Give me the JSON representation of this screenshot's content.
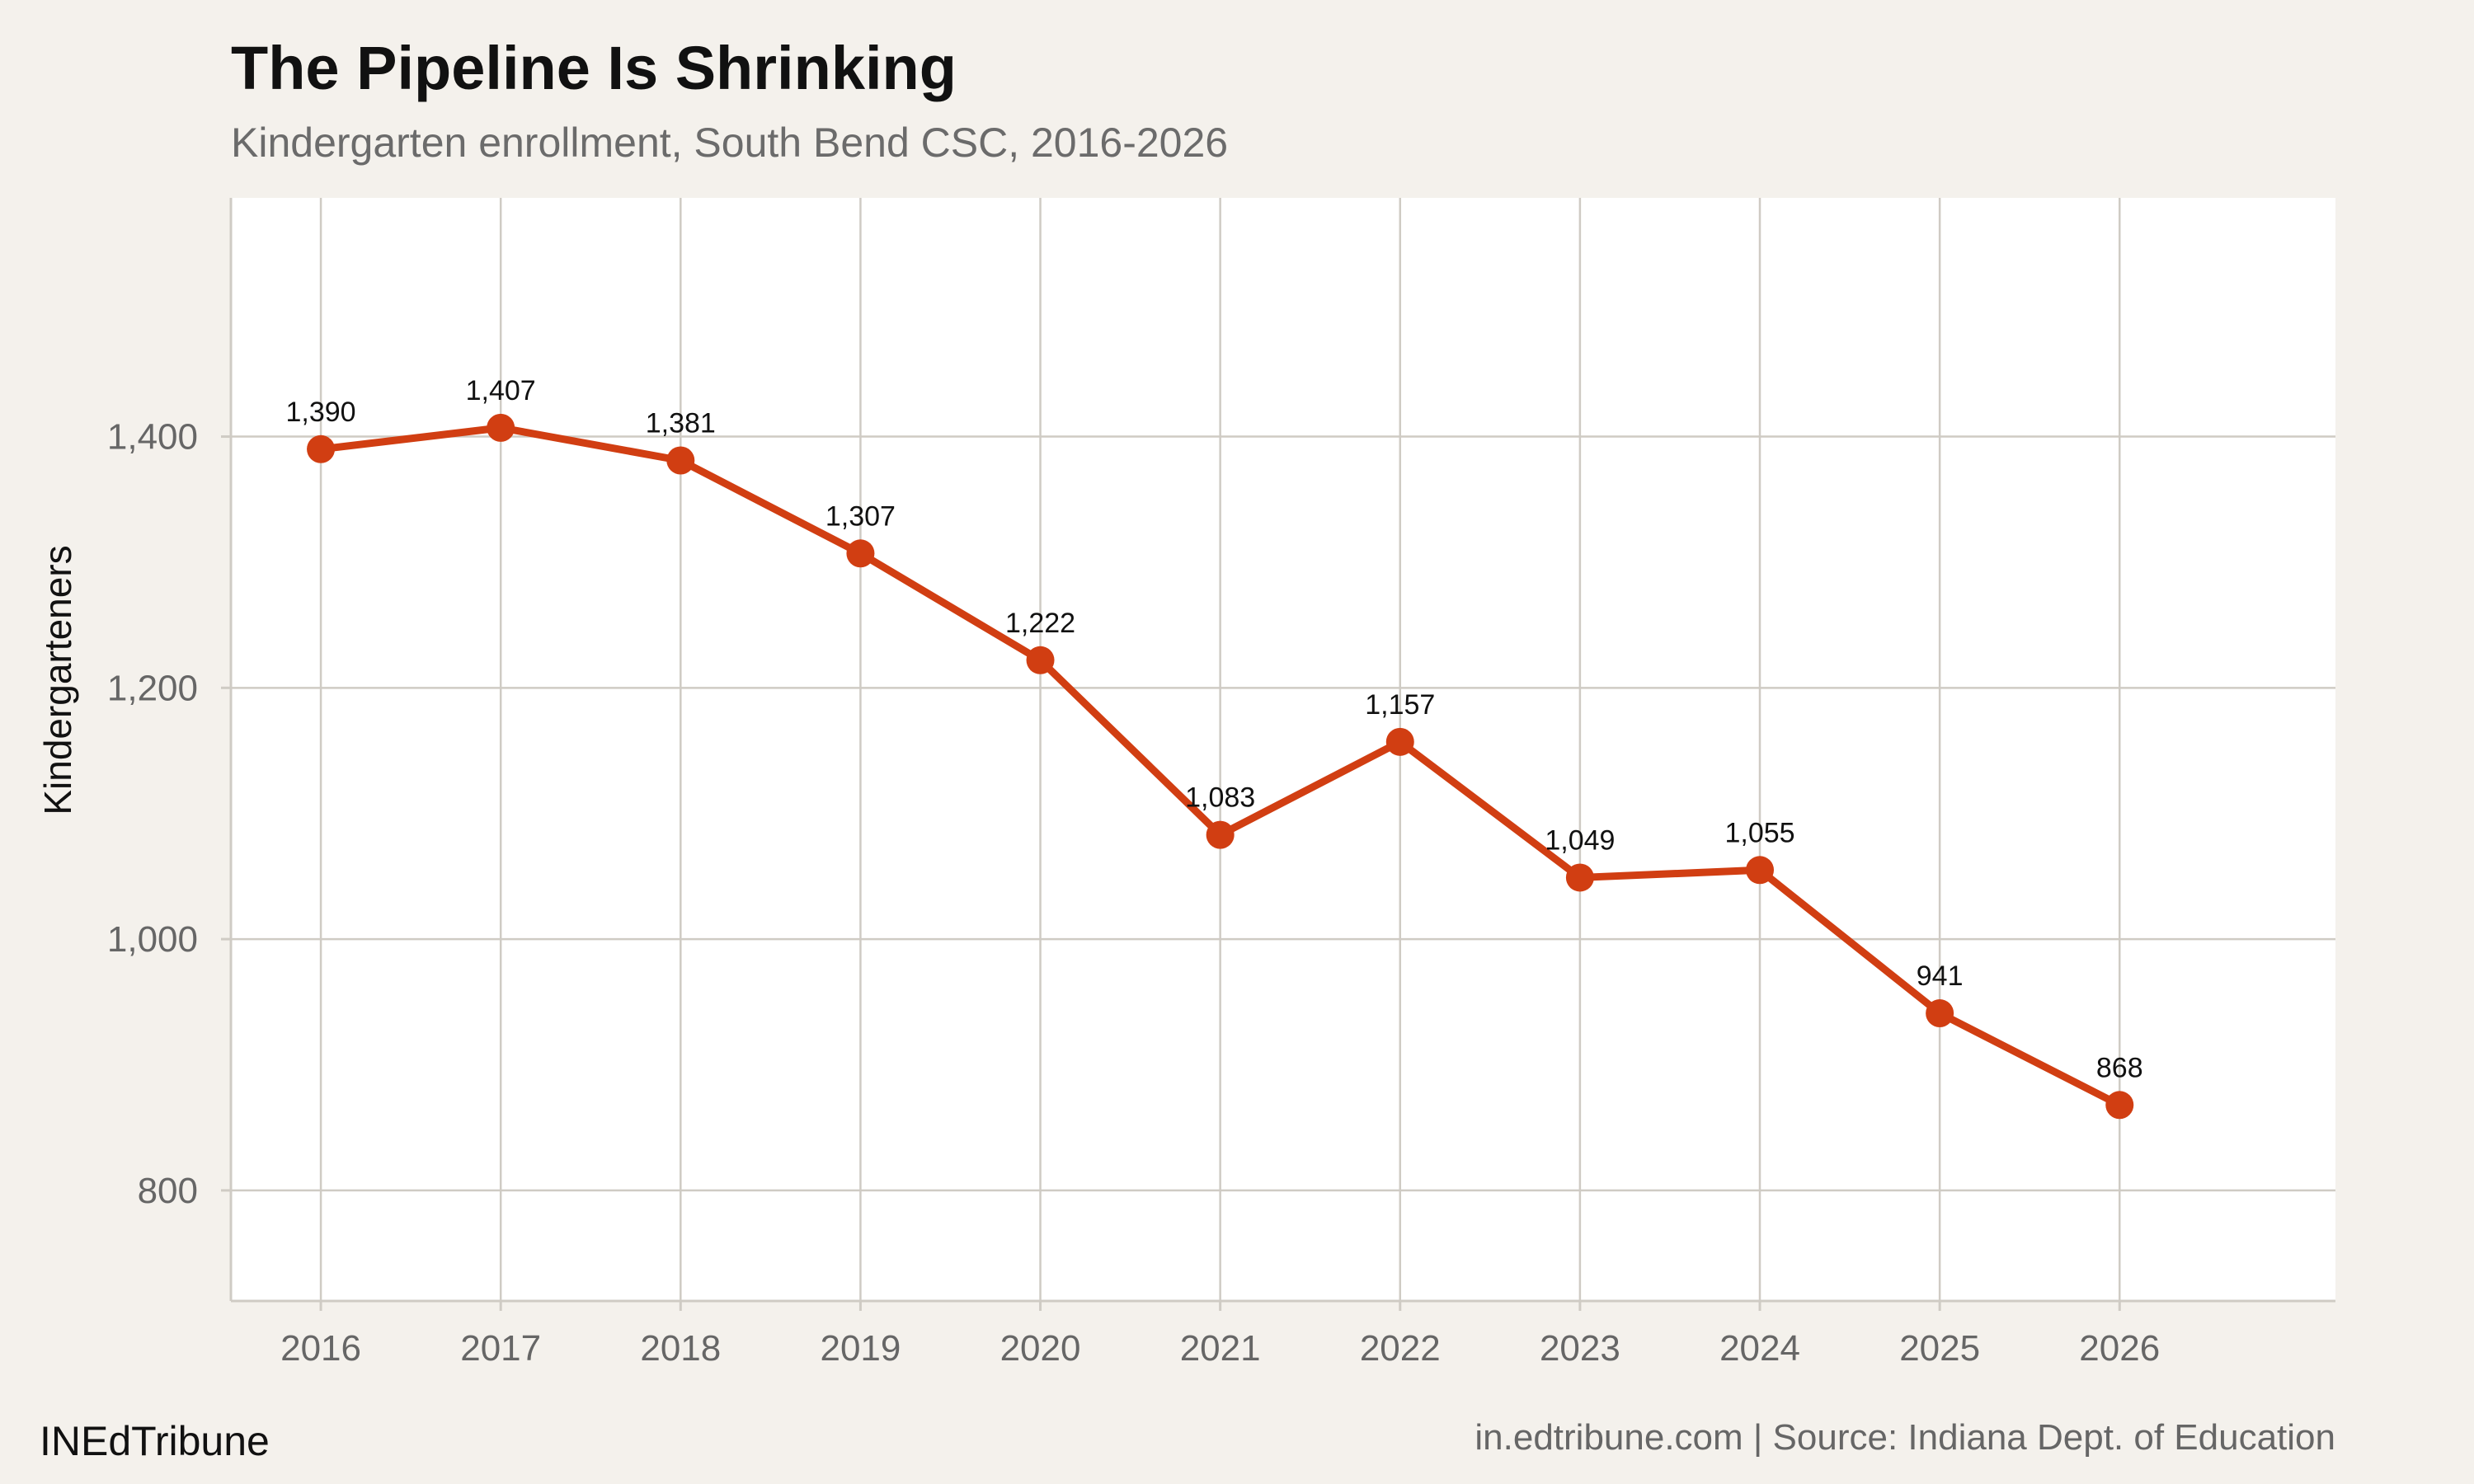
{
  "brand": "INEdTribune",
  "source": "in.edtribune.com | Source: Indiana Dept. of Education",
  "colors": {
    "background": "#f4f1ec",
    "plot_background": "#ffffff",
    "grid": "#cfcbc4",
    "line": "#d13e12",
    "point": "#d13e12"
  },
  "chart_data": {
    "type": "line",
    "title": "The Pipeline Is Shrinking",
    "subtitle": "Kindergarten enrollment, South Bend CSC, 2016-2026",
    "xlabel": "",
    "ylabel": "Kindergarteners",
    "x": [
      2016,
      2017,
      2018,
      2019,
      2020,
      2021,
      2022,
      2023,
      2024,
      2025,
      2026
    ],
    "series": [
      {
        "values": [
          1390,
          1407,
          1381,
          1307,
          1222,
          1083,
          1157,
          1049,
          1055,
          941,
          868
        ],
        "labels": [
          "1,390",
          "1,407",
          "1,381",
          "1,307",
          "1,222",
          "1,083",
          "1,157",
          "1,049",
          "1,055",
          "941",
          "868"
        ]
      }
    ],
    "xticks": [
      "2016",
      "2017",
      "2018",
      "2019",
      "2020",
      "2021",
      "2022",
      "2023",
      "2024",
      "2025",
      "2026"
    ],
    "yticks": [
      800,
      1000,
      1200,
      1400
    ],
    "ytick_labels": [
      "800",
      "1,000",
      "1,200",
      "1,400"
    ],
    "xlim": [
      2015.5,
      2027.2
    ],
    "ylim": [
      712,
      1590
    ],
    "grid": true,
    "legend": "none"
  }
}
